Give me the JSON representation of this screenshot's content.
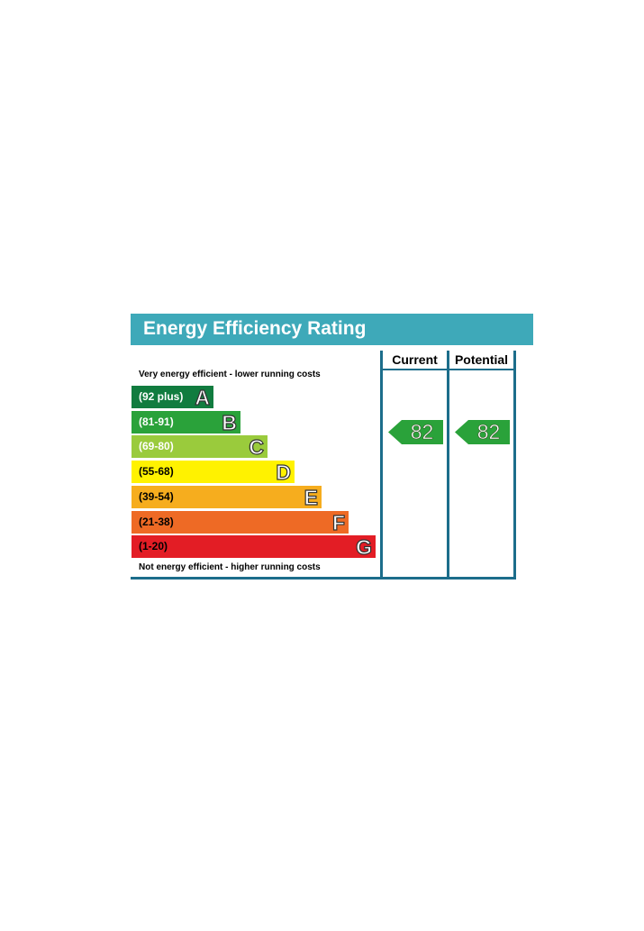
{
  "title": "Energy Efficiency Rating",
  "columns": {
    "current": "Current",
    "potential": "Potential"
  },
  "captions": {
    "top": "Very energy efficient - lower running costs",
    "bottom": "Not energy efficient - higher running costs"
  },
  "bands": [
    {
      "range": "(92 plus)",
      "letter": "A",
      "color": "#117c3f",
      "text_color": "#ffffff"
    },
    {
      "range": "(81-91)",
      "letter": "B",
      "color": "#2aa23a",
      "text_color": "#ffffff"
    },
    {
      "range": "(69-80)",
      "letter": "C",
      "color": "#9acb3c",
      "text_color": "#ffffff"
    },
    {
      "range": "(55-68)",
      "letter": "D",
      "color": "#fff200",
      "text_color": "#000000"
    },
    {
      "range": "(39-54)",
      "letter": "E",
      "color": "#f6ad1e",
      "text_color": "#000000"
    },
    {
      "range": "(21-38)",
      "letter": "F",
      "color": "#ee6a25",
      "text_color": "#000000"
    },
    {
      "range": "(1-20)",
      "letter": "G",
      "color": "#e31d25",
      "text_color": "#000000"
    }
  ],
  "ratings": {
    "current": {
      "value": "82",
      "band": "B",
      "color": "#2aa23a"
    },
    "potential": {
      "value": "82",
      "band": "B",
      "color": "#2aa23a"
    }
  }
}
